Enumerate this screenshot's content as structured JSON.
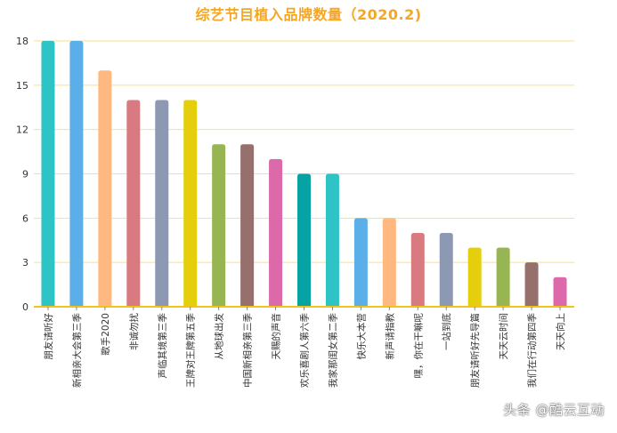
{
  "chart_data": {
    "type": "bar",
    "title": "综艺节目植入品牌数量（2020.2)",
    "xlabel": "",
    "ylabel": "",
    "ylim": [
      0,
      18
    ],
    "yticks": [
      0,
      3,
      6,
      9,
      12,
      15,
      18
    ],
    "grid": true,
    "categories": [
      "朋友请听好",
      "新相亲大会第三季",
      "歌手2020",
      "非诚勿扰",
      "声临其境第三季",
      "王牌对王牌第五季",
      "从地球出发",
      "中国新相亲第三季",
      "天赐的声音",
      "欢乐喜剧人第六季",
      "我家那闺女第二季",
      "快乐大本营",
      "新声请指教",
      "嘿，你在干嘛呢",
      "一站到底",
      "朋友请听好先导篇",
      "天天云时间",
      "我们在行动第四季",
      "天天向上"
    ],
    "values": [
      18,
      18,
      16,
      14,
      14,
      14,
      11,
      11,
      10,
      9,
      9,
      6,
      6,
      5,
      5,
      4,
      4,
      3,
      2
    ],
    "colors": [
      "#2ec4c6",
      "#5aafe8",
      "#ffb880",
      "#d87a80",
      "#8d98b3",
      "#e5cf0d",
      "#97b552",
      "#95706d",
      "#dc69aa",
      "#07a2a4",
      "#2ec4c6",
      "#5aafe8",
      "#ffb880",
      "#d87a80",
      "#8d98b3",
      "#e5cf0d",
      "#97b552",
      "#95706d",
      "#dc69aa"
    ],
    "grid_color": "#f5e08a",
    "axis_color": "#f0c419",
    "title_color": "#f5a623"
  },
  "watermark": "头条 @酷云互动"
}
